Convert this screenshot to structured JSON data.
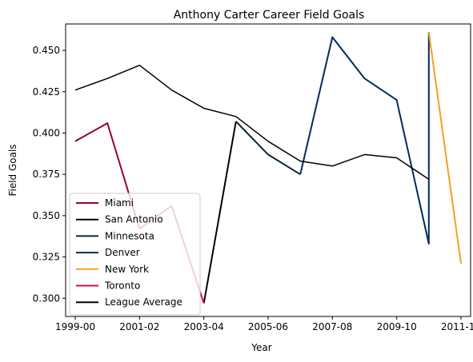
{
  "chart_data": {
    "type": "line",
    "title": "Anthony Carter Career Field Goals",
    "xlabel": "Year",
    "ylabel": "Field Goals",
    "categories": [
      "1999-00",
      "2000-01",
      "2001-02",
      "2002-03",
      "2003-04",
      "2004-05",
      "2005-06",
      "2006-07",
      "2007-08",
      "2008-09",
      "2009-10",
      "2010-11",
      "2011-12"
    ],
    "x_tick_labels": [
      "1999-00",
      "2001-02",
      "2003-04",
      "2005-06",
      "2007-08",
      "2009-10",
      "2011-12"
    ],
    "y_ticks": [
      0.3,
      0.325,
      0.35,
      0.375,
      0.4,
      0.425,
      0.45
    ],
    "y_tick_labels": [
      "0.300",
      "0.325",
      "0.350",
      "0.375",
      "0.400",
      "0.425",
      "0.450"
    ],
    "xlim": [
      -0.3,
      12.3
    ],
    "ylim": [
      0.289,
      0.466
    ],
    "legend_position": "lower-left",
    "grid": false,
    "series": [
      {
        "name": "Miami",
        "color": "#98002E",
        "width": 2,
        "x": [
          0,
          1,
          2
        ],
        "values": [
          0.395,
          0.406,
          0.342
        ]
      },
      {
        "name": "San Antonio",
        "color": "#000000",
        "width": 2,
        "x": [
          4,
          5
        ],
        "values": [
          0.297,
          0.407
        ]
      },
      {
        "name": "Minnesota",
        "color": "#0C2340",
        "width": 2,
        "x": [
          5,
          6,
          7
        ],
        "values": [
          0.407,
          0.387,
          0.375
        ]
      },
      {
        "name": "Denver",
        "color": "#002B5C",
        "width": 2,
        "x": [
          7,
          8,
          9,
          10,
          11,
          11
        ],
        "values": [
          0.375,
          0.458,
          0.433,
          0.42,
          0.333,
          0.461
        ]
      },
      {
        "name": "New York",
        "color": "#F7A01D",
        "width": 2,
        "x": [
          11,
          12
        ],
        "values": [
          0.461,
          0.321
        ]
      },
      {
        "name": "Toronto",
        "color": "#CE1141",
        "width": 2,
        "x": [
          2,
          3,
          4
        ],
        "values": [
          0.342,
          0.356,
          0.297
        ]
      },
      {
        "name": "League Average",
        "color": "#000000",
        "width": 1.5,
        "x": [
          0,
          1,
          2,
          3,
          4,
          5,
          6,
          7,
          8,
          9,
          10,
          11
        ],
        "values": [
          0.426,
          0.433,
          0.441,
          0.426,
          0.415,
          0.41,
          0.395,
          0.383,
          0.38,
          0.387,
          0.385,
          0.372
        ]
      }
    ]
  }
}
